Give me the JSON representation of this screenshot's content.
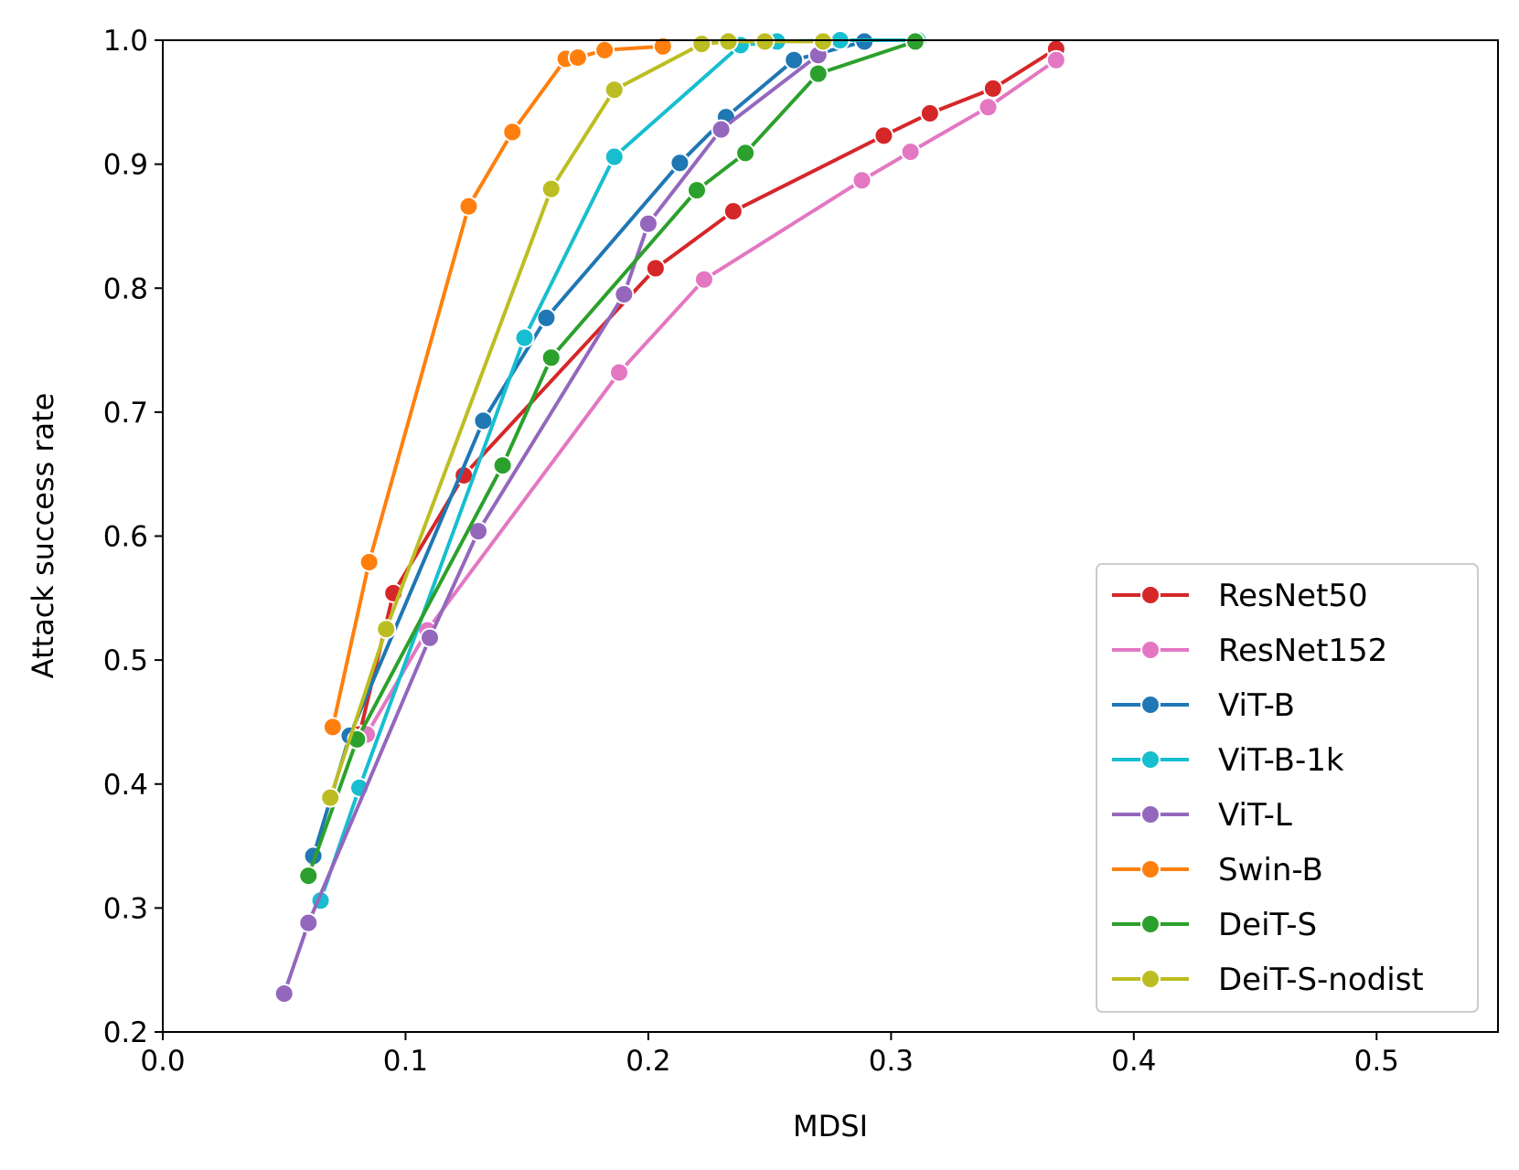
{
  "chart_data": {
    "type": "line",
    "title": "",
    "xlabel": "MDSI",
    "ylabel": "Attack success rate",
    "xlim": [
      0.0,
      0.55
    ],
    "ylim": [
      0.2,
      1.0
    ],
    "xticks": [
      "0.0",
      "0.1",
      "0.2",
      "0.3",
      "0.4",
      "0.5"
    ],
    "yticks": [
      "0.2",
      "0.3",
      "0.4",
      "0.5",
      "0.6",
      "0.7",
      "0.8",
      "0.9",
      "1.0"
    ],
    "grid": false,
    "legend_position": "bottom-right",
    "series": [
      {
        "name": "ResNet50",
        "color": "#d62728",
        "x": [
          0.081,
          0.095,
          0.124,
          0.203,
          0.235,
          0.297,
          0.316,
          0.342,
          0.368
        ],
        "y": [
          0.44,
          0.554,
          0.649,
          0.816,
          0.862,
          0.923,
          0.941,
          0.961,
          0.993
        ]
      },
      {
        "name": "ResNet152",
        "color": "#e377c2",
        "x": [
          0.084,
          0.109,
          0.188,
          0.223,
          0.288,
          0.308,
          0.34,
          0.368
        ],
        "y": [
          0.44,
          0.524,
          0.732,
          0.807,
          0.887,
          0.91,
          0.946,
          0.984
        ]
      },
      {
        "name": "ViT-B",
        "color": "#1f77b4",
        "x": [
          0.062,
          0.077,
          0.132,
          0.158,
          0.213,
          0.232,
          0.26,
          0.289
        ],
        "y": [
          0.342,
          0.439,
          0.693,
          0.776,
          0.901,
          0.938,
          0.984,
          0.999
        ]
      },
      {
        "name": "ViT-B-1k",
        "color": "#17becf",
        "x": [
          0.065,
          0.081,
          0.149,
          0.186,
          0.238,
          0.253,
          0.279,
          0.311
        ],
        "y": [
          0.306,
          0.397,
          0.76,
          0.906,
          0.996,
          0.999,
          1.0,
          1.0
        ]
      },
      {
        "name": "ViT-L",
        "color": "#9467bd",
        "x": [
          0.05,
          0.06,
          0.11,
          0.13,
          0.19,
          0.2,
          0.23,
          0.27
        ],
        "y": [
          0.231,
          0.288,
          0.518,
          0.604,
          0.795,
          0.852,
          0.928,
          0.988
        ]
      },
      {
        "name": "Swin-B",
        "color": "#ff7f0e",
        "x": [
          0.07,
          0.085,
          0.126,
          0.144,
          0.166,
          0.171,
          0.182,
          0.206
        ],
        "y": [
          0.446,
          0.579,
          0.866,
          0.926,
          0.985,
          0.986,
          0.992,
          0.995
        ]
      },
      {
        "name": "DeiT-S",
        "color": "#2ca02c",
        "x": [
          0.06,
          0.08,
          0.14,
          0.16,
          0.22,
          0.24,
          0.27,
          0.31
        ],
        "y": [
          0.326,
          0.436,
          0.657,
          0.744,
          0.879,
          0.909,
          0.973,
          0.999
        ]
      },
      {
        "name": "DeiT-S-nodist",
        "color": "#bcbd22",
        "x": [
          0.069,
          0.092,
          0.16,
          0.186,
          0.222,
          0.233,
          0.248,
          0.272
        ],
        "y": [
          0.389,
          0.525,
          0.88,
          0.96,
          0.997,
          0.999,
          0.999,
          0.999
        ]
      }
    ]
  }
}
